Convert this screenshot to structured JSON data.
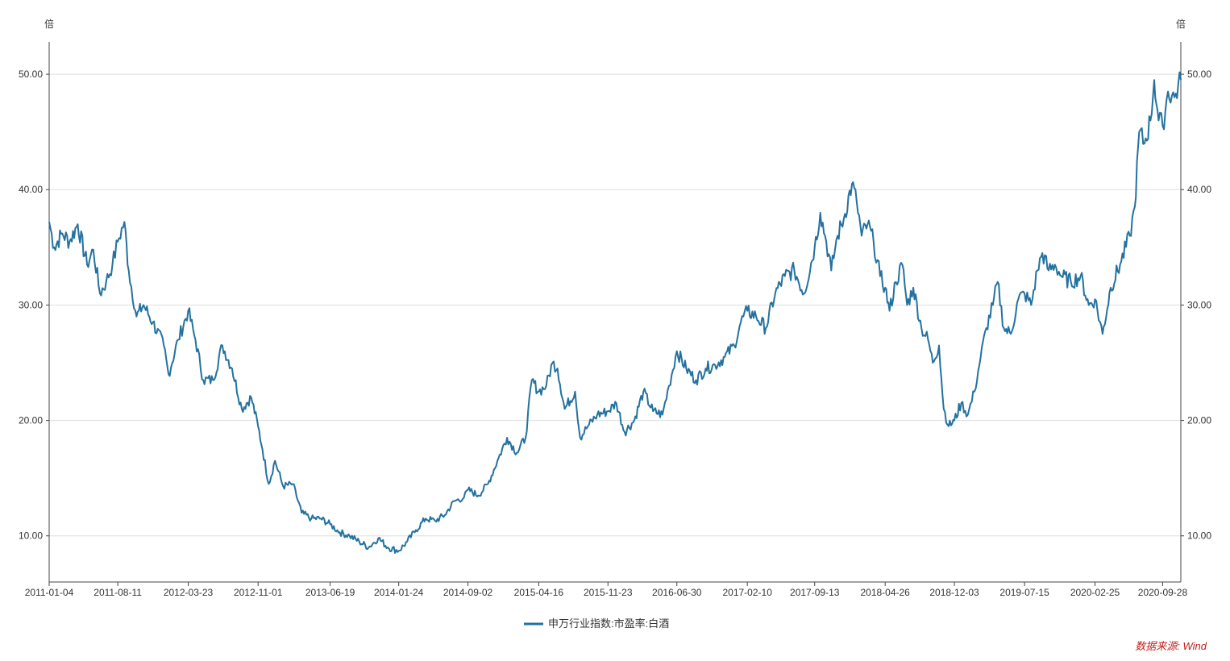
{
  "chart_data": {
    "type": "line",
    "title": "",
    "ylabel_left": "倍",
    "ylabel_right": "倍",
    "xlabel": "",
    "ylim": [
      6,
      52.8
    ],
    "yticks": [
      10,
      20,
      30,
      40,
      50
    ],
    "ytick_labels": [
      "10.00",
      "20.00",
      "30.00",
      "40.00",
      "50.00"
    ],
    "xlim": [
      "2011-01-04",
      "2020-11-25"
    ],
    "xtick_labels": [
      "2011-01-04",
      "2011-08-11",
      "2012-03-23",
      "2012-11-01",
      "2013-06-19",
      "2014-01-24",
      "2014-09-02",
      "2015-04-16",
      "2015-11-23",
      "2016-06-30",
      "2017-02-10",
      "2017-09-13",
      "2018-04-26",
      "2018-12-03",
      "2019-07-15",
      "2020-02-25",
      "2020-09-28"
    ],
    "grid": true,
    "legend_position": "bottom-center",
    "series": [
      {
        "name": "申万行业指数:市盈率:白酒",
        "color": "#2371a0",
        "points": [
          [
            "2011-01-04",
            37.2
          ],
          [
            "2011-01-20",
            35.0
          ],
          [
            "2011-02-15",
            36.2
          ],
          [
            "2011-03-10",
            35.5
          ],
          [
            "2011-04-05",
            37.0
          ],
          [
            "2011-05-05",
            33.5
          ],
          [
            "2011-05-25",
            34.8
          ],
          [
            "2011-06-15",
            31.0
          ],
          [
            "2011-07-05",
            32.0
          ],
          [
            "2011-07-25",
            33.5
          ],
          [
            "2011-08-11",
            35.5
          ],
          [
            "2011-09-01",
            37.2
          ],
          [
            "2011-09-15",
            33.0
          ],
          [
            "2011-10-10",
            29.0
          ],
          [
            "2011-11-01",
            30.0
          ],
          [
            "2011-12-01",
            28.5
          ],
          [
            "2012-01-05",
            26.5
          ],
          [
            "2012-01-20",
            24.0
          ],
          [
            "2012-02-20",
            27.0
          ],
          [
            "2012-03-23",
            29.5
          ],
          [
            "2012-04-15",
            27.0
          ],
          [
            "2012-05-10",
            23.5
          ],
          [
            "2012-06-10",
            23.5
          ],
          [
            "2012-07-10",
            26.5
          ],
          [
            "2012-08-10",
            24.5
          ],
          [
            "2012-09-10",
            21.0
          ],
          [
            "2012-10-10",
            22.0
          ],
          [
            "2012-11-01",
            19.5
          ],
          [
            "2012-11-15",
            17.5
          ],
          [
            "2012-12-05",
            14.5
          ],
          [
            "2012-12-25",
            16.5
          ],
          [
            "2013-01-20",
            14.3
          ],
          [
            "2013-02-20",
            14.5
          ],
          [
            "2013-03-20",
            12.0
          ],
          [
            "2013-04-20",
            11.5
          ],
          [
            "2013-05-20",
            11.5
          ],
          [
            "2013-06-19",
            11.0
          ],
          [
            "2013-07-20",
            10.3
          ],
          [
            "2013-08-20",
            10.0
          ],
          [
            "2013-09-20",
            9.5
          ],
          [
            "2013-10-20",
            9.0
          ],
          [
            "2013-11-20",
            9.8
          ],
          [
            "2013-12-20",
            9.0
          ],
          [
            "2014-01-24",
            8.7
          ],
          [
            "2014-02-20",
            9.5
          ],
          [
            "2014-03-20",
            10.5
          ],
          [
            "2014-04-20",
            11.5
          ],
          [
            "2014-05-20",
            11.3
          ],
          [
            "2014-06-20",
            11.8
          ],
          [
            "2014-07-20",
            13.0
          ],
          [
            "2014-08-20",
            13.3
          ],
          [
            "2014-09-02",
            14.0
          ],
          [
            "2014-10-05",
            13.5
          ],
          [
            "2014-11-05",
            14.5
          ],
          [
            "2014-12-05",
            16.5
          ],
          [
            "2015-01-05",
            18.5
          ],
          [
            "2015-02-05",
            17.2
          ],
          [
            "2015-03-05",
            18.5
          ],
          [
            "2015-03-25",
            23.5
          ],
          [
            "2015-04-16",
            22.5
          ],
          [
            "2015-05-10",
            23.0
          ],
          [
            "2015-05-30",
            25.0
          ],
          [
            "2015-06-15",
            24.5
          ],
          [
            "2015-07-08",
            21.0
          ],
          [
            "2015-08-10",
            22.5
          ],
          [
            "2015-08-26",
            18.5
          ],
          [
            "2015-09-20",
            19.5
          ],
          [
            "2015-10-20",
            20.5
          ],
          [
            "2015-11-23",
            20.8
          ],
          [
            "2015-12-20",
            21.5
          ],
          [
            "2016-01-15",
            19.0
          ],
          [
            "2016-02-15",
            20.0
          ],
          [
            "2016-03-15",
            22.5
          ],
          [
            "2016-04-15",
            20.8
          ],
          [
            "2016-05-15",
            20.5
          ],
          [
            "2016-06-05",
            23.0
          ],
          [
            "2016-06-30",
            26.0
          ],
          [
            "2016-07-30",
            24.5
          ],
          [
            "2016-08-30",
            23.5
          ],
          [
            "2016-09-30",
            24.5
          ],
          [
            "2016-10-30",
            24.8
          ],
          [
            "2016-11-30",
            25.5
          ],
          [
            "2016-12-30",
            26.5
          ],
          [
            "2017-01-20",
            28.5
          ],
          [
            "2017-02-10",
            29.5
          ],
          [
            "2017-03-10",
            29.0
          ],
          [
            "2017-04-10",
            28.0
          ],
          [
            "2017-05-10",
            31.0
          ],
          [
            "2017-06-10",
            32.5
          ],
          [
            "2017-07-10",
            33.0
          ],
          [
            "2017-08-10",
            31.0
          ],
          [
            "2017-09-13",
            35.0
          ],
          [
            "2017-10-01",
            38.0
          ],
          [
            "2017-10-20",
            35.5
          ],
          [
            "2017-11-05",
            33.0
          ],
          [
            "2017-11-25",
            36.0
          ],
          [
            "2017-12-15",
            37.5
          ],
          [
            "2018-01-10",
            40.5
          ],
          [
            "2018-01-25",
            39.0
          ],
          [
            "2018-02-10",
            36.0
          ],
          [
            "2018-03-01",
            37.0
          ],
          [
            "2018-03-20",
            35.5
          ],
          [
            "2018-04-10",
            32.5
          ],
          [
            "2018-04-26",
            31.5
          ],
          [
            "2018-05-10",
            29.5
          ],
          [
            "2018-05-30",
            32.0
          ],
          [
            "2018-06-20",
            33.5
          ],
          [
            "2018-07-05",
            30.0
          ],
          [
            "2018-07-25",
            31.5
          ],
          [
            "2018-08-20",
            28.0
          ],
          [
            "2018-09-10",
            27.0
          ],
          [
            "2018-09-25",
            25.0
          ],
          [
            "2018-10-15",
            26.5
          ],
          [
            "2018-10-30",
            21.0
          ],
          [
            "2018-11-15",
            19.5
          ],
          [
            "2018-12-03",
            20.0
          ],
          [
            "2018-12-25",
            21.5
          ],
          [
            "2019-01-15",
            20.5
          ],
          [
            "2019-02-05",
            22.5
          ],
          [
            "2019-02-25",
            25.5
          ],
          [
            "2019-03-15",
            28.0
          ],
          [
            "2019-04-05",
            30.0
          ],
          [
            "2019-04-20",
            32.0
          ],
          [
            "2019-05-10",
            28.0
          ],
          [
            "2019-06-01",
            27.5
          ],
          [
            "2019-06-25",
            30.5
          ],
          [
            "2019-07-15",
            31.0
          ],
          [
            "2019-08-05",
            30.0
          ],
          [
            "2019-08-25",
            33.0
          ],
          [
            "2019-09-10",
            34.5
          ],
          [
            "2019-09-30",
            33.0
          ],
          [
            "2019-10-20",
            33.5
          ],
          [
            "2019-11-10",
            32.5
          ],
          [
            "2019-12-10",
            32.0
          ],
          [
            "2020-01-10",
            32.5
          ],
          [
            "2020-02-05",
            30.0
          ],
          [
            "2020-02-25",
            30.5
          ],
          [
            "2020-03-20",
            27.5
          ],
          [
            "2020-04-15",
            31.5
          ],
          [
            "2020-05-15",
            33.5
          ],
          [
            "2020-06-15",
            36.0
          ],
          [
            "2020-07-01",
            38.5
          ],
          [
            "2020-07-15",
            45.0
          ],
          [
            "2020-08-01",
            44.0
          ],
          [
            "2020-08-20",
            46.0
          ],
          [
            "2020-09-01",
            49.5
          ],
          [
            "2020-09-15",
            46.0
          ],
          [
            "2020-09-28",
            45.5
          ],
          [
            "2020-10-15",
            48.5
          ],
          [
            "2020-11-05",
            48.0
          ],
          [
            "2020-11-25",
            49.5
          ]
        ]
      }
    ],
    "source": "数据来源: Wind"
  }
}
